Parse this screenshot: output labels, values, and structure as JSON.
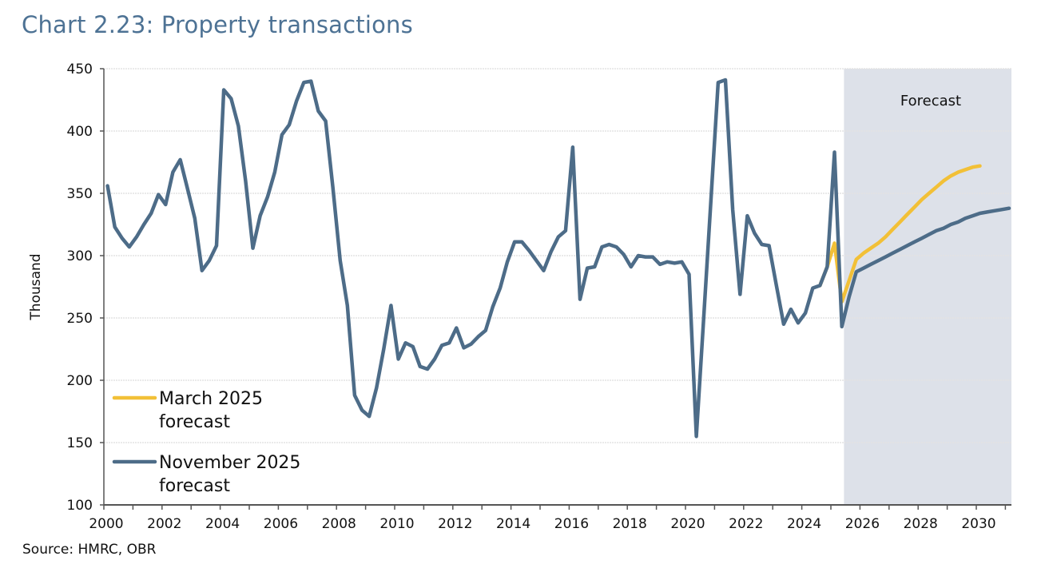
{
  "title": "Chart 2.23: Property transactions",
  "source": "Source: HMRC, OBR",
  "chart_data": {
    "type": "line",
    "title": "Chart 2.23: Property transactions",
    "xlabel": "",
    "ylabel": "Thousand",
    "frequency": "quarterly",
    "xlim": [
      2000,
      2031.1
    ],
    "ylim": [
      100,
      450
    ],
    "yticks": [
      100,
      150,
      200,
      250,
      300,
      350,
      400,
      450
    ],
    "xticks": [
      2000,
      2002,
      2004,
      2006,
      2008,
      2010,
      2012,
      2014,
      2016,
      2018,
      2020,
      2022,
      2024,
      2026,
      2028,
      2030
    ],
    "grid": "horizontal",
    "legend_position": "bottom-left",
    "shaded_region": {
      "label": "Forecast",
      "from": 2025.45,
      "to": 2031.1,
      "color": "#dde1e9"
    },
    "series": [
      {
        "name": "March 2025 forecast",
        "color": "#f2c037",
        "start": "2024Q3",
        "values": [
          276,
          291,
          310,
          263,
          280,
          297,
          302,
          306,
          310,
          315,
          321,
          327,
          333,
          339,
          345,
          350,
          355,
          360,
          364,
          367,
          369,
          371,
          372
        ]
      },
      {
        "name": "November 2025 forecast",
        "color": "#4d6c88",
        "start": "2000Q1",
        "values": [
          356,
          323,
          314,
          307,
          315,
          325,
          334,
          349,
          341,
          367,
          377,
          354,
          330,
          288,
          296,
          308,
          433,
          426,
          404,
          360,
          306,
          332,
          347,
          367,
          397,
          405,
          424,
          439,
          440,
          416,
          408,
          355,
          296,
          260,
          188,
          176,
          171,
          194,
          225,
          260,
          217,
          230,
          227,
          211,
          209,
          217,
          228,
          230,
          242,
          226,
          229,
          235,
          240,
          259,
          274,
          295,
          311,
          311,
          304,
          296,
          288,
          303,
          315,
          320,
          387,
          265,
          290,
          291,
          307,
          309,
          307,
          301,
          291,
          300,
          299,
          299,
          293,
          295,
          294,
          295,
          285,
          155,
          250,
          345,
          439,
          441,
          337,
          269,
          332,
          318,
          309,
          308,
          276,
          245,
          257,
          246,
          254,
          274,
          276,
          291,
          383,
          243,
          267,
          287,
          290,
          293,
          296,
          299,
          302,
          305,
          308,
          311,
          314,
          317,
          320,
          322,
          325,
          327,
          330,
          332,
          334,
          335,
          336,
          337,
          338
        ]
      }
    ],
    "legend": [
      "March 2025 forecast",
      "November 2025 forecast"
    ],
    "legend_lines": [
      [
        "March 2025",
        "forecast"
      ],
      [
        "November 2025",
        "forecast"
      ]
    ]
  }
}
